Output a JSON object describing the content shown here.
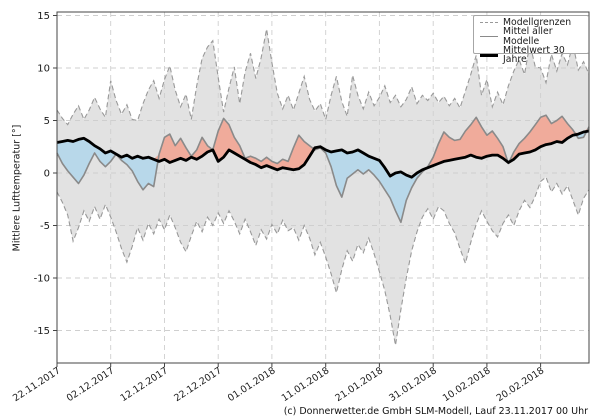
{
  "ylabel": "Mittlere Lufttemperatur [°]",
  "caption": "(c) Donnerwetter.de GmbH SLM-Modell, Lauf 23.11.2017 00 Uhr",
  "legend": [
    {
      "label": "Modellgrenzen",
      "style": "dashed-gray"
    },
    {
      "label": "Mittel aller Modelle",
      "style": "solid-gray"
    },
    {
      "label": "Mittelwert 30 Jahre",
      "style": "thick-black"
    }
  ],
  "colors": {
    "envelope_fill": "#e2e2e2",
    "envelope_edge": "#999999",
    "warm_fill": "#f0ab9b",
    "cold_fill": "#b8d8ea",
    "model_mean_line": "#8a8a8a",
    "clim_line": "#000000",
    "grid": "#cfcfcf",
    "axis": "#444444",
    "tick_text": "#1a1a1a"
  },
  "chart_data": {
    "type": "line",
    "title": "",
    "xlabel": "",
    "ylabel": "Mittlere Lufttemperatur [°]",
    "caption": "(c) Donnerwetter.de GmbH SLM-Modell, Lauf 23.11.2017 00 Uhr",
    "grid": true,
    "legend_position": "upper right",
    "ylim": [
      -18.1,
      15.33
    ],
    "yticks": [
      -15,
      -10,
      -5,
      0,
      5,
      10,
      15
    ],
    "xtick_days": [
      0,
      10,
      20,
      30,
      40,
      50,
      60,
      70,
      80,
      90
    ],
    "xtick_labels": [
      "22.11.2017",
      "02.12.2017",
      "12.12.2017",
      "22.12.2017",
      "01.01.2018",
      "11.01.2018",
      "21.01.2018",
      "31.01.2018",
      "10.02.2018",
      "20.02.2018"
    ],
    "x_is_daily_index_from": "22.11.2017",
    "series": [
      {
        "name": "Modellgrenzen oben",
        "values": [
          6.0,
          5.2,
          4.6,
          5.6,
          6.4,
          5.1,
          6.0,
          7.2,
          6.1,
          5.3,
          8.8,
          6.9,
          5.6,
          6.5,
          5.1,
          5.0,
          6.6,
          7.9,
          8.8,
          7.1,
          8.9,
          10.2,
          7.9,
          6.3,
          7.5,
          5.1,
          8.3,
          10.9,
          12.0,
          12.6,
          9.1,
          5.8,
          8.1,
          10.1,
          6.6,
          9.6,
          11.4,
          9.0,
          11.0,
          13.7,
          10.5,
          7.6,
          6.1,
          7.4,
          6.0,
          7.6,
          9.2,
          7.0,
          5.9,
          6.6,
          5.1,
          7.4,
          9.2,
          6.8,
          5.4,
          9.3,
          7.4,
          6.1,
          7.7,
          6.4,
          7.2,
          8.3,
          6.7,
          7.4,
          6.3,
          7.0,
          8.2,
          6.6,
          7.4,
          6.9,
          7.6,
          6.7,
          7.3,
          6.4,
          7.1,
          6.2,
          7.8,
          9.4,
          11.2,
          7.4,
          8.9,
          6.3,
          7.7,
          6.5,
          8.3,
          9.7,
          10.8,
          9.4,
          12.3,
          10.1,
          10.0,
          8.6,
          11.3,
          9.7,
          11.4,
          10.3,
          12.3,
          9.8,
          10.6,
          9.4
        ]
      },
      {
        "name": "Modellgrenzen unten",
        "values": [
          -1.8,
          -2.8,
          -4.0,
          -6.5,
          -5.2,
          -3.6,
          -4.6,
          -3.2,
          -4.4,
          -3.0,
          -4.2,
          -5.6,
          -7.2,
          -8.5,
          -7.0,
          -5.2,
          -6.4,
          -4.8,
          -5.8,
          -4.4,
          -5.4,
          -4.0,
          -5.2,
          -6.6,
          -7.5,
          -6.0,
          -4.6,
          -5.6,
          -4.2,
          -5.0,
          -3.8,
          -4.8,
          -3.6,
          -4.6,
          -5.8,
          -4.4,
          -5.6,
          -6.9,
          -5.4,
          -6.3,
          -4.9,
          -5.8,
          -4.5,
          -5.5,
          -5.2,
          -6.4,
          -5.0,
          -6.2,
          -7.8,
          -6.6,
          -8.0,
          -9.6,
          -11.4,
          -9.2,
          -7.4,
          -8.4,
          -6.8,
          -7.6,
          -6.2,
          -7.7,
          -9.4,
          -11.2,
          -13.6,
          -16.4,
          -13.0,
          -10.0,
          -7.4,
          -5.6,
          -4.2,
          -3.4,
          -4.4,
          -3.2,
          -3.6,
          -4.8,
          -5.7,
          -7.2,
          -8.6,
          -6.6,
          -4.9,
          -3.6,
          -4.6,
          -5.5,
          -6.1,
          -4.8,
          -4.0,
          -5.0,
          -3.6,
          -2.6,
          -3.3,
          -2.2,
          -0.8,
          -0.4,
          -1.8,
          -1.0,
          -2.0,
          -1.2,
          -2.6,
          -4.0,
          -2.4,
          -1.6
        ]
      },
      {
        "name": "Mittel aller Modelle",
        "values": [
          1.9,
          0.9,
          0.2,
          -0.4,
          -1.0,
          -0.2,
          0.9,
          1.9,
          1.1,
          0.6,
          1.1,
          1.8,
          1.2,
          0.8,
          0.2,
          -0.8,
          -1.6,
          -1.0,
          -1.3,
          1.8,
          3.4,
          3.7,
          2.6,
          3.3,
          2.4,
          1.6,
          2.2,
          3.4,
          2.6,
          2.2,
          4.0,
          5.2,
          4.6,
          3.4,
          2.6,
          1.4,
          1.6,
          1.4,
          1.1,
          1.5,
          1.1,
          0.9,
          1.3,
          1.1,
          2.4,
          3.6,
          3.0,
          2.6,
          2.2,
          2.4,
          1.9,
          0.6,
          -1.2,
          -2.3,
          -0.5,
          -0.1,
          0.3,
          -0.1,
          0.3,
          -0.2,
          -0.8,
          -1.6,
          -2.4,
          -3.6,
          -4.7,
          -2.6,
          -1.4,
          -0.5,
          0.1,
          0.6,
          1.5,
          2.8,
          3.9,
          3.4,
          3.1,
          3.2,
          4.0,
          4.6,
          5.3,
          4.4,
          3.6,
          4.0,
          3.3,
          2.5,
          0.9,
          2.0,
          2.8,
          3.3,
          3.9,
          4.6,
          5.3,
          5.5,
          4.7,
          5.0,
          5.4,
          4.7,
          4.1,
          3.3,
          3.4,
          4.4
        ]
      },
      {
        "name": "Mittelwert 30 Jahre",
        "values": [
          2.9,
          3.0,
          3.1,
          3.0,
          3.2,
          3.3,
          3.0,
          2.6,
          2.3,
          1.9,
          2.1,
          1.8,
          1.5,
          1.7,
          1.4,
          1.6,
          1.4,
          1.5,
          1.3,
          1.1,
          1.3,
          1.0,
          1.2,
          1.4,
          1.2,
          1.5,
          1.3,
          1.6,
          2.0,
          2.2,
          1.1,
          1.5,
          2.2,
          1.9,
          1.6,
          1.3,
          1.0,
          0.8,
          0.5,
          0.7,
          0.5,
          0.3,
          0.5,
          0.4,
          0.3,
          0.4,
          0.8,
          1.6,
          2.4,
          2.5,
          2.2,
          2.0,
          2.1,
          2.2,
          1.9,
          2.0,
          2.2,
          1.9,
          1.6,
          1.4,
          1.2,
          0.5,
          -0.3,
          0.0,
          0.1,
          -0.2,
          -0.4,
          0.0,
          0.3,
          0.5,
          0.7,
          0.9,
          1.1,
          1.2,
          1.3,
          1.4,
          1.5,
          1.7,
          1.5,
          1.4,
          1.6,
          1.7,
          1.7,
          1.4,
          1.0,
          1.3,
          1.8,
          1.9,
          2.0,
          2.2,
          2.5,
          2.7,
          2.8,
          3.0,
          2.9,
          3.3,
          3.6,
          3.7,
          3.9,
          4.0
        ]
      }
    ]
  }
}
